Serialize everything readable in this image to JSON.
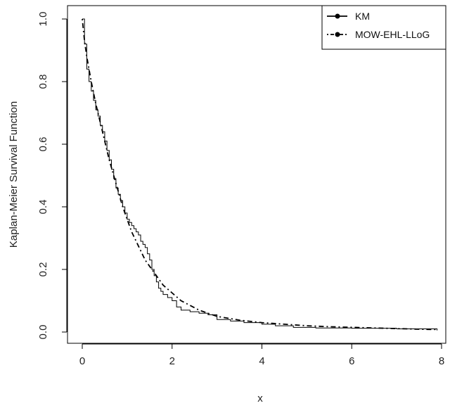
{
  "chart_data": {
    "type": "line",
    "xlabel": "x",
    "ylabel": "Kaplan-Meier Survival Function",
    "xlim": [
      0,
      8
    ],
    "ylim": [
      0,
      1
    ],
    "x_ticks": [
      "0",
      "2",
      "4",
      "6",
      "8"
    ],
    "y_ticks": [
      "0.0",
      "0.2",
      "0.4",
      "0.6",
      "0.8",
      "1.0"
    ],
    "grid": false,
    "legend_position": "top-right",
    "series": [
      {
        "name": "KM",
        "style": "step",
        "dash": "solid",
        "color": "#000000",
        "x": [
          0.0,
          0.05,
          0.1,
          0.15,
          0.2,
          0.25,
          0.3,
          0.35,
          0.4,
          0.45,
          0.5,
          0.55,
          0.6,
          0.65,
          0.7,
          0.75,
          0.8,
          0.85,
          0.9,
          0.95,
          1.0,
          1.05,
          1.1,
          1.15,
          1.2,
          1.25,
          1.3,
          1.35,
          1.4,
          1.45,
          1.5,
          1.55,
          1.6,
          1.65,
          1.7,
          1.75,
          1.8,
          1.9,
          2.0,
          2.1,
          2.2,
          2.4,
          2.6,
          2.8,
          3.0,
          3.3,
          3.6,
          4.0,
          4.3,
          4.7,
          5.2,
          6.0,
          7.0,
          7.9
        ],
        "y": [
          1.0,
          0.92,
          0.84,
          0.8,
          0.77,
          0.74,
          0.71,
          0.69,
          0.66,
          0.64,
          0.61,
          0.58,
          0.55,
          0.52,
          0.49,
          0.46,
          0.44,
          0.42,
          0.4,
          0.38,
          0.36,
          0.35,
          0.34,
          0.33,
          0.32,
          0.31,
          0.29,
          0.28,
          0.27,
          0.25,
          0.23,
          0.2,
          0.18,
          0.16,
          0.14,
          0.13,
          0.12,
          0.11,
          0.1,
          0.08,
          0.07,
          0.065,
          0.06,
          0.055,
          0.04,
          0.035,
          0.03,
          0.025,
          0.02,
          0.015,
          0.013,
          0.012,
          0.01,
          0.005
        ]
      },
      {
        "name": "MOW-EHL-LLoG",
        "style": "smooth",
        "dash": "dotdash",
        "color": "#000000",
        "x": [
          0.0,
          0.05,
          0.1,
          0.2,
          0.3,
          0.4,
          0.5,
          0.6,
          0.7,
          0.8,
          0.9,
          1.0,
          1.1,
          1.2,
          1.3,
          1.4,
          1.5,
          1.6,
          1.7,
          1.8,
          2.0,
          2.2,
          2.4,
          2.6,
          2.8,
          3.0,
          3.5,
          4.0,
          4.5,
          5.0,
          5.5,
          6.0,
          6.5,
          7.0,
          7.5,
          7.9
        ],
        "y": [
          1.0,
          0.93,
          0.88,
          0.8,
          0.73,
          0.67,
          0.61,
          0.55,
          0.5,
          0.45,
          0.4,
          0.36,
          0.32,
          0.29,
          0.26,
          0.23,
          0.21,
          0.19,
          0.17,
          0.15,
          0.125,
          0.1,
          0.085,
          0.07,
          0.06,
          0.05,
          0.038,
          0.03,
          0.025,
          0.02,
          0.017,
          0.015,
          0.013,
          0.011,
          0.009,
          0.008
        ]
      }
    ]
  }
}
